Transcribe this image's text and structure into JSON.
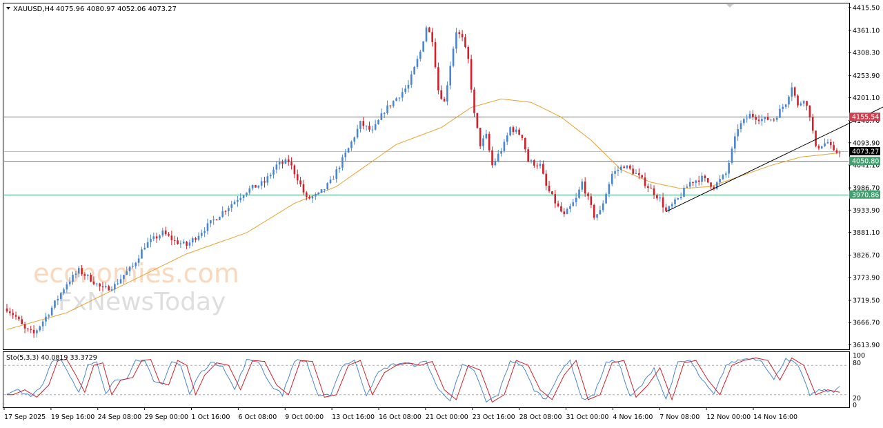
{
  "header": {
    "symbol": "XAUUSD,H4",
    "ohlc": "4075.96 4080.97 4052.06 4073.27"
  },
  "stoch": {
    "label": "Sto(5,3,3) 40.0819 33.3729",
    "levels": [
      "100",
      "80",
      "20",
      "0"
    ]
  },
  "watermark": {
    "line1": "economies.com",
    "line2": "FxNewsToday"
  },
  "colors": {
    "bull": "#4a86d0",
    "bear": "#d0202a",
    "ma": "#e8a030",
    "stoch_main": "#4a86d0",
    "stoch_signal": "#d0202a",
    "resistance": "#d04050",
    "support": "#40a070",
    "current": "#000000"
  },
  "chart_data": {
    "type": "candlestick",
    "price_ticks": [
      "4415.50",
      "4361.10",
      "4308.30",
      "4253.90",
      "4201.10",
      "4146.70",
      "4093.90",
      "4041.10",
      "3986.70",
      "3933.90",
      "3881.10",
      "3826.70",
      "3773.90",
      "3719.50",
      "3666.70",
      "3613.90"
    ],
    "ylim": [
      3603,
      4425
    ],
    "x_ticks": [
      "17 Sep 2025",
      "19 Sep 16:00",
      "24 Sep 08:00",
      "29 Sep 00:00",
      "1 Oct 16:00",
      "6 Oct 08:00",
      "9 Oct 00:00",
      "13 Oct 16:00",
      "16 Oct 08:00",
      "21 Oct 00:00",
      "23 Oct 16:00",
      "28 Oct 08:00",
      "31 Oct 00:00",
      "4 Nov 16:00",
      "7 Nov 08:00",
      "12 Nov 00:00",
      "14 Nov 16:00"
    ],
    "levels": [
      {
        "label": "4155.54",
        "value": 4155.54,
        "kind": "resistance"
      },
      {
        "label": "4050.80",
        "value": 4050.8,
        "kind": "support"
      },
      {
        "label": "3970.86",
        "value": 3970.86,
        "kind": "support"
      }
    ],
    "current_price": {
      "label": "4073.27",
      "value": 4073.27
    },
    "trendline": {
      "from": {
        "bar": 220,
        "price": 3930
      },
      "to": {
        "bar": 303,
        "price": 4215
      }
    },
    "anchors": [
      [
        0,
        3700
      ],
      [
        3,
        3680
      ],
      [
        6,
        3650
      ],
      [
        9,
        3640
      ],
      [
        14,
        3690
      ],
      [
        20,
        3760
      ],
      [
        24,
        3790
      ],
      [
        28,
        3770
      ],
      [
        32,
        3745
      ],
      [
        36,
        3755
      ],
      [
        39,
        3780
      ],
      [
        42,
        3800
      ],
      [
        46,
        3850
      ],
      [
        52,
        3880
      ],
      [
        56,
        3860
      ],
      [
        60,
        3850
      ],
      [
        63,
        3870
      ],
      [
        66,
        3890
      ],
      [
        72,
        3930
      ],
      [
        80,
        3980
      ],
      [
        86,
        4000
      ],
      [
        90,
        4040
      ],
      [
        94,
        4050
      ],
      [
        97,
        4010
      ],
      [
        100,
        3960
      ],
      [
        104,
        3970
      ],
      [
        108,
        4000
      ],
      [
        114,
        4080
      ],
      [
        118,
        4140
      ],
      [
        122,
        4120
      ],
      [
        126,
        4170
      ],
      [
        130,
        4200
      ],
      [
        134,
        4230
      ],
      [
        138,
        4310
      ],
      [
        140,
        4370
      ],
      [
        142,
        4340
      ],
      [
        144,
        4220
      ],
      [
        146,
        4190
      ],
      [
        148,
        4280
      ],
      [
        150,
        4360
      ],
      [
        152,
        4340
      ],
      [
        154,
        4290
      ],
      [
        156,
        4160
      ],
      [
        158,
        4090
      ],
      [
        160,
        4110
      ],
      [
        162,
        4040
      ],
      [
        166,
        4090
      ],
      [
        168,
        4130
      ],
      [
        172,
        4110
      ],
      [
        174,
        4050
      ],
      [
        178,
        4040
      ],
      [
        180,
        3990
      ],
      [
        184,
        3940
      ],
      [
        186,
        3920
      ],
      [
        190,
        3960
      ],
      [
        192,
        4000
      ],
      [
        196,
        3920
      ],
      [
        198,
        3930
      ],
      [
        202,
        4020
      ],
      [
        206,
        4040
      ],
      [
        210,
        4020
      ],
      [
        214,
        3990
      ],
      [
        218,
        3960
      ],
      [
        220,
        3930
      ],
      [
        224,
        3960
      ],
      [
        228,
        4000
      ],
      [
        232,
        4010
      ],
      [
        236,
        3990
      ],
      [
        240,
        4020
      ],
      [
        244,
        4130
      ],
      [
        248,
        4160
      ],
      [
        252,
        4150
      ],
      [
        256,
        4150
      ],
      [
        260,
        4190
      ],
      [
        262,
        4230
      ],
      [
        264,
        4180
      ],
      [
        266,
        4200
      ],
      [
        268,
        4160
      ],
      [
        270,
        4080
      ],
      [
        272,
        4090
      ],
      [
        274,
        4095
      ],
      [
        276,
        4070
      ],
      [
        278,
        4074
      ]
    ],
    "ma_anchors": [
      [
        0,
        3650
      ],
      [
        20,
        3690
      ],
      [
        40,
        3760
      ],
      [
        60,
        3830
      ],
      [
        80,
        3880
      ],
      [
        96,
        3950
      ],
      [
        110,
        3990
      ],
      [
        130,
        4090
      ],
      [
        145,
        4130
      ],
      [
        155,
        4178
      ],
      [
        165,
        4198
      ],
      [
        175,
        4190
      ],
      [
        185,
        4155
      ],
      [
        195,
        4100
      ],
      [
        205,
        4030
      ],
      [
        215,
        4000
      ],
      [
        225,
        3985
      ],
      [
        235,
        3990
      ],
      [
        245,
        4015
      ],
      [
        255,
        4040
      ],
      [
        265,
        4060
      ],
      [
        278,
        4070
      ]
    ],
    "stoch_anchors": [
      [
        0,
        20
      ],
      [
        4,
        30
      ],
      [
        8,
        15
      ],
      [
        12,
        40
      ],
      [
        15,
        90
      ],
      [
        18,
        92
      ],
      [
        21,
        60
      ],
      [
        24,
        25
      ],
      [
        27,
        80
      ],
      [
        30,
        85
      ],
      [
        33,
        20
      ],
      [
        36,
        50
      ],
      [
        40,
        55
      ],
      [
        43,
        90
      ],
      [
        46,
        92
      ],
      [
        49,
        45
      ],
      [
        52,
        40
      ],
      [
        55,
        90
      ],
      [
        58,
        80
      ],
      [
        61,
        20
      ],
      [
        64,
        60
      ],
      [
        68,
        85
      ],
      [
        72,
        80
      ],
      [
        76,
        30
      ],
      [
        80,
        90
      ],
      [
        84,
        88
      ],
      [
        88,
        40
      ],
      [
        92,
        20
      ],
      [
        96,
        90
      ],
      [
        100,
        88
      ],
      [
        104,
        15
      ],
      [
        108,
        20
      ],
      [
        112,
        80
      ],
      [
        116,
        90
      ],
      [
        120,
        20
      ],
      [
        124,
        65
      ],
      [
        128,
        80
      ],
      [
        132,
        85
      ],
      [
        136,
        80
      ],
      [
        140,
        88
      ],
      [
        144,
        30
      ],
      [
        148,
        10
      ],
      [
        152,
        80
      ],
      [
        156,
        70
      ],
      [
        160,
        5
      ],
      [
        164,
        20
      ],
      [
        168,
        90
      ],
      [
        172,
        80
      ],
      [
        176,
        30
      ],
      [
        180,
        10
      ],
      [
        184,
        60
      ],
      [
        188,
        90
      ],
      [
        192,
        10
      ],
      [
        196,
        20
      ],
      [
        200,
        85
      ],
      [
        204,
        90
      ],
      [
        208,
        15
      ],
      [
        212,
        40
      ],
      [
        216,
        75
      ],
      [
        220,
        10
      ],
      [
        224,
        85
      ],
      [
        228,
        90
      ],
      [
        232,
        50
      ],
      [
        236,
        20
      ],
      [
        240,
        80
      ],
      [
        244,
        90
      ],
      [
        248,
        95
      ],
      [
        252,
        90
      ],
      [
        256,
        50
      ],
      [
        260,
        95
      ],
      [
        264,
        80
      ],
      [
        268,
        20
      ],
      [
        272,
        30
      ],
      [
        276,
        25
      ],
      [
        278,
        40
      ]
    ]
  }
}
